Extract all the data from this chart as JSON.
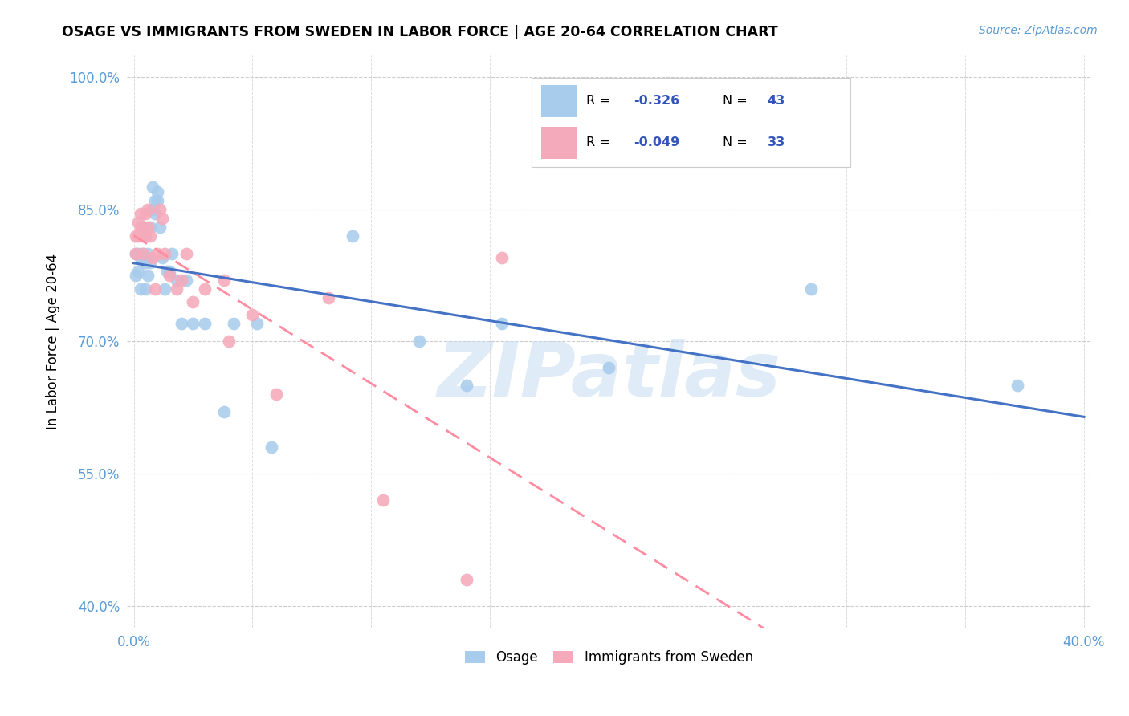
{
  "title": "OSAGE VS IMMIGRANTS FROM SWEDEN IN LABOR FORCE | AGE 20-64 CORRELATION CHART",
  "source": "Source: ZipAtlas.com",
  "ylabel": "In Labor Force | Age 20-64",
  "xlim": [
    -0.003,
    0.403
  ],
  "ylim": [
    0.375,
    1.025
  ],
  "xticks": [
    0.0,
    0.05,
    0.1,
    0.15,
    0.2,
    0.25,
    0.3,
    0.35,
    0.4
  ],
  "xticklabels": [
    "0.0%",
    "",
    "",
    "",
    "",
    "",
    "",
    "",
    "40.0%"
  ],
  "yticks": [
    0.4,
    0.55,
    0.7,
    0.85,
    1.0
  ],
  "yticklabels": [
    "40.0%",
    "55.0%",
    "70.0%",
    "85.0%",
    "100.0%"
  ],
  "legend_R_blue": "-0.326",
  "legend_N_blue": "43",
  "legend_R_pink": "-0.049",
  "legend_N_pink": "33",
  "blue_scatter_color": "#A8CCEC",
  "pink_scatter_color": "#F5AABB",
  "blue_line_color": "#4472C4",
  "pink_line_color": "#FF8CA0",
  "watermark": "ZIPatlas",
  "osage_x": [
    0.001,
    0.001,
    0.002,
    0.002,
    0.003,
    0.003,
    0.004,
    0.004,
    0.005,
    0.005,
    0.005,
    0.006,
    0.006,
    0.007,
    0.007,
    0.008,
    0.008,
    0.009,
    0.009,
    0.01,
    0.01,
    0.011,
    0.012,
    0.013,
    0.014,
    0.015,
    0.016,
    0.018,
    0.02,
    0.022,
    0.025,
    0.03,
    0.038,
    0.042,
    0.052,
    0.058,
    0.092,
    0.12,
    0.14,
    0.155,
    0.2,
    0.285,
    0.372
  ],
  "osage_y": [
    0.775,
    0.8,
    0.78,
    0.8,
    0.76,
    0.795,
    0.82,
    0.8,
    0.82,
    0.79,
    0.76,
    0.8,
    0.775,
    0.79,
    0.83,
    0.85,
    0.875,
    0.86,
    0.845,
    0.87,
    0.86,
    0.83,
    0.795,
    0.76,
    0.78,
    0.78,
    0.8,
    0.77,
    0.72,
    0.77,
    0.72,
    0.72,
    0.62,
    0.72,
    0.72,
    0.58,
    0.82,
    0.7,
    0.65,
    0.72,
    0.67,
    0.76,
    0.65
  ],
  "sweden_x": [
    0.001,
    0.001,
    0.002,
    0.002,
    0.003,
    0.003,
    0.004,
    0.004,
    0.005,
    0.005,
    0.006,
    0.006,
    0.007,
    0.008,
    0.009,
    0.01,
    0.011,
    0.012,
    0.013,
    0.015,
    0.018,
    0.02,
    0.022,
    0.025,
    0.03,
    0.038,
    0.04,
    0.05,
    0.06,
    0.082,
    0.105,
    0.14,
    0.155
  ],
  "sweden_y": [
    0.8,
    0.82,
    0.835,
    0.82,
    0.845,
    0.83,
    0.83,
    0.8,
    0.845,
    0.82,
    0.85,
    0.83,
    0.82,
    0.795,
    0.76,
    0.8,
    0.85,
    0.84,
    0.8,
    0.775,
    0.76,
    0.77,
    0.8,
    0.745,
    0.76,
    0.77,
    0.7,
    0.73,
    0.64,
    0.75,
    0.52,
    0.43,
    0.795
  ]
}
